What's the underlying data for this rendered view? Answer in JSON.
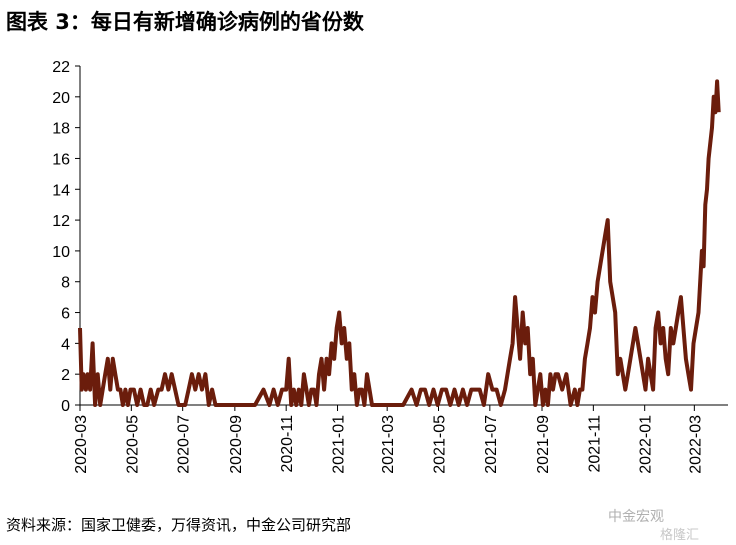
{
  "title": "图表 3：每日有新增确诊病例的省份数",
  "source": "资料来源：国家卫健委，万得资讯，中金公司研究部",
  "watermark": "中金宏观",
  "watermark_secondary": "格隆汇",
  "colors": {
    "series": "#6b1d0c",
    "axis": "#000000",
    "watermark": "#b0b0b0"
  },
  "chart_data": {
    "type": "line",
    "title": "图表 3：每日有新增确诊病例的省份数",
    "xlabel": "",
    "ylabel": "",
    "ylim": [
      0,
      22
    ],
    "yticks": [
      0,
      2,
      4,
      6,
      8,
      10,
      12,
      14,
      16,
      18,
      20,
      22
    ],
    "xlim": [
      "2020-03-01",
      "2022-04-10"
    ],
    "xticks": [
      "2020-03",
      "2020-05",
      "2020-07",
      "2020-09",
      "2020-11",
      "2021-01",
      "2021-03",
      "2021-05",
      "2021-07",
      "2021-09",
      "2021-11",
      "2022-01",
      "2022-03"
    ],
    "grid": false,
    "legend": "none",
    "series": [
      {
        "x": [
          "2020-03-01",
          "2020-03-03",
          "2020-03-05",
          "2020-03-08",
          "2020-03-10",
          "2020-03-13",
          "2020-03-16",
          "2020-03-19",
          "2020-03-22",
          "2020-03-25",
          "2020-03-28",
          "2020-03-31",
          "2020-04-03",
          "2020-04-06",
          "2020-04-09",
          "2020-04-12",
          "2020-04-15",
          "2020-04-18",
          "2020-04-21",
          "2020-04-24",
          "2020-04-27",
          "2020-04-30",
          "2020-05-04",
          "2020-05-08",
          "2020-05-12",
          "2020-05-16",
          "2020-05-20",
          "2020-05-24",
          "2020-05-28",
          "2020-06-02",
          "2020-06-06",
          "2020-06-10",
          "2020-06-14",
          "2020-06-18",
          "2020-06-22",
          "2020-06-26",
          "2020-06-30",
          "2020-07-04",
          "2020-07-08",
          "2020-07-12",
          "2020-07-16",
          "2020-07-20",
          "2020-07-24",
          "2020-07-28",
          "2020-08-01",
          "2020-08-05",
          "2020-08-09",
          "2020-08-13",
          "2020-08-17",
          "2020-08-21",
          "2020-08-25",
          "2020-08-29",
          "2020-09-05",
          "2020-09-15",
          "2020-09-25",
          "2020-10-05",
          "2020-10-12",
          "2020-10-17",
          "2020-10-22",
          "2020-10-27",
          "2020-11-01",
          "2020-11-04",
          "2020-11-07",
          "2020-11-10",
          "2020-11-13",
          "2020-11-16",
          "2020-11-19",
          "2020-11-22",
          "2020-11-25",
          "2020-11-28",
          "2020-12-01",
          "2020-12-04",
          "2020-12-07",
          "2020-12-10",
          "2020-12-13",
          "2020-12-16",
          "2020-12-19",
          "2020-12-22",
          "2020-12-25",
          "2020-12-28",
          "2020-12-31",
          "2021-01-03",
          "2021-01-06",
          "2021-01-09",
          "2021-01-12",
          "2021-01-15",
          "2021-01-18",
          "2021-01-21",
          "2021-01-24",
          "2021-01-27",
          "2021-01-30",
          "2021-02-02",
          "2021-02-05",
          "2021-02-08",
          "2021-02-11",
          "2021-02-14",
          "2021-02-17",
          "2021-02-22",
          "2021-03-01",
          "2021-03-10",
          "2021-03-20",
          "2021-03-30",
          "2021-04-05",
          "2021-04-10",
          "2021-04-15",
          "2021-04-20",
          "2021-04-25",
          "2021-04-30",
          "2021-05-05",
          "2021-05-10",
          "2021-05-15",
          "2021-05-20",
          "2021-05-25",
          "2021-05-30",
          "2021-06-04",
          "2021-06-09",
          "2021-06-14",
          "2021-06-19",
          "2021-06-24",
          "2021-06-29",
          "2021-07-04",
          "2021-07-09",
          "2021-07-14",
          "2021-07-19",
          "2021-07-22",
          "2021-07-25",
          "2021-07-28",
          "2021-07-31",
          "2021-08-03",
          "2021-08-06",
          "2021-08-09",
          "2021-08-12",
          "2021-08-15",
          "2021-08-18",
          "2021-08-21",
          "2021-08-24",
          "2021-08-27",
          "2021-08-30",
          "2021-09-02",
          "2021-09-05",
          "2021-09-08",
          "2021-09-11",
          "2021-09-14",
          "2021-09-17",
          "2021-09-20",
          "2021-09-25",
          "2021-09-30",
          "2021-10-05",
          "2021-10-10",
          "2021-10-13",
          "2021-10-16",
          "2021-10-19",
          "2021-10-22",
          "2021-10-25",
          "2021-10-28",
          "2021-10-31",
          "2021-11-03",
          "2021-11-06",
          "2021-11-09",
          "2021-11-12",
          "2021-11-15",
          "2021-11-18",
          "2021-11-21",
          "2021-11-24",
          "2021-11-27",
          "2021-11-30",
          "2021-12-03",
          "2021-12-06",
          "2021-12-09",
          "2021-12-12",
          "2021-12-15",
          "2021-12-18",
          "2021-12-21",
          "2021-12-24",
          "2021-12-27",
          "2021-12-30",
          "2022-01-02",
          "2022-01-05",
          "2022-01-08",
          "2022-01-11",
          "2022-01-14",
          "2022-01-17",
          "2022-01-20",
          "2022-01-23",
          "2022-01-26",
          "2022-01-29",
          "2022-02-01",
          "2022-02-04",
          "2022-02-07",
          "2022-02-10",
          "2022-02-13",
          "2022-02-16",
          "2022-02-19",
          "2022-02-22",
          "2022-02-25",
          "2022-02-28",
          "2022-03-03",
          "2022-03-06",
          "2022-03-08",
          "2022-03-10",
          "2022-03-12",
          "2022-03-14",
          "2022-03-16",
          "2022-03-18",
          "2022-03-20",
          "2022-03-22",
          "2022-03-24",
          "2022-03-26",
          "2022-03-28",
          "2022-03-30"
        ],
        "y": [
          5,
          1,
          2,
          1,
          2,
          1,
          4,
          0,
          2,
          0,
          1,
          2,
          3,
          1,
          3,
          2,
          1,
          1,
          0,
          1,
          0,
          1,
          1,
          0,
          1,
          0,
          0,
          1,
          0,
          1,
          1,
          2,
          1,
          2,
          1,
          0,
          0,
          0,
          1,
          2,
          1,
          2,
          1,
          2,
          0,
          1,
          0,
          0,
          0,
          0,
          0,
          0,
          0,
          0,
          0,
          1,
          0,
          1,
          0,
          1,
          1,
          3,
          0,
          1,
          0,
          1,
          0,
          2,
          1,
          0,
          1,
          1,
          0,
          2,
          3,
          1,
          3,
          2,
          4,
          3,
          5,
          6,
          4,
          5,
          3,
          4,
          1,
          2,
          0,
          1,
          1,
          0,
          2,
          1,
          0,
          0,
          0,
          0,
          0,
          0,
          0,
          1,
          0,
          1,
          1,
          0,
          1,
          0,
          1,
          1,
          0,
          1,
          0,
          1,
          0,
          1,
          1,
          1,
          0,
          2,
          1,
          1,
          0,
          1,
          2,
          3,
          4,
          7,
          5,
          3,
          6,
          4,
          5,
          2,
          3,
          0,
          1,
          2,
          0,
          1,
          0,
          2,
          1,
          2,
          2,
          1,
          2,
          0,
          1,
          0,
          1,
          1,
          3,
          4,
          5,
          7,
          6,
          8,
          9,
          10,
          11,
          12,
          8,
          7,
          6,
          2,
          3,
          2,
          1,
          2,
          3,
          4,
          5,
          4,
          3,
          2,
          1,
          3,
          2,
          1,
          5,
          6,
          4,
          5,
          3,
          2,
          5,
          4,
          5,
          6,
          7,
          5,
          3,
          2,
          1,
          4,
          5,
          6,
          8,
          10,
          9,
          13,
          14,
          16,
          17,
          18,
          20,
          19,
          21,
          19
        ]
      }
    ]
  }
}
